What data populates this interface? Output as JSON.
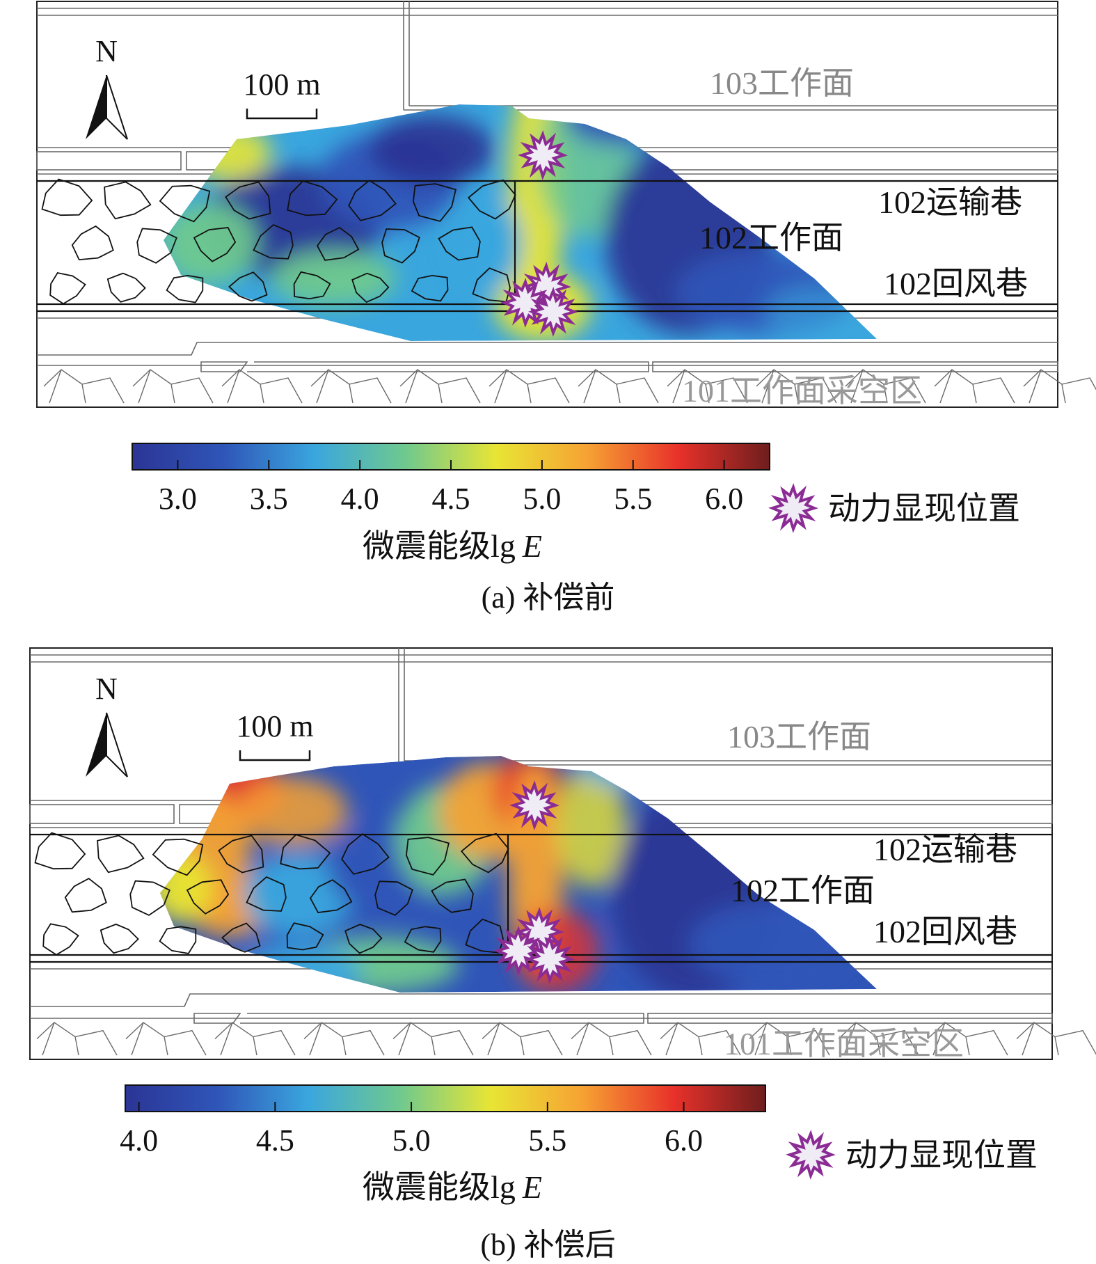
{
  "panels": [
    {
      "caption": "(a) 补偿前",
      "compass_label": "N",
      "scale_label": "100 m",
      "labels": {
        "face_103": "103工作面",
        "transport_102": "102运输巷",
        "face_102": "102工作面",
        "return_102": "102回风巷",
        "goaf_101": "101工作面采空区"
      },
      "colorbar": {
        "title_prefix": "微震能级lg",
        "title_var": "E",
        "min": 2.75,
        "max": 6.25,
        "tick_values": [
          3.0,
          3.5,
          4.0,
          4.5,
          5.0,
          5.5,
          6.0
        ],
        "tick_labels": [
          "3.0",
          "3.5",
          "4.0",
          "4.5",
          "5.0",
          "5.5",
          "6.0"
        ]
      },
      "legend_label": "动力显现位置",
      "palette": "blue-dominant"
    },
    {
      "caption": "(b) 补偿后",
      "compass_label": "N",
      "scale_label": "100 m",
      "labels": {
        "face_103": "103工作面",
        "transport_102": "102运输巷",
        "face_102": "102工作面",
        "return_102": "102回风巷",
        "goaf_101": "101工作面采空区"
      },
      "colorbar": {
        "title_prefix": "微震能级lg",
        "title_var": "E",
        "min": 3.95,
        "max": 6.3,
        "tick_values": [
          4.0,
          4.5,
          5.0,
          5.5,
          6.0
        ],
        "tick_labels": [
          "4.0",
          "4.5",
          "5.0",
          "5.5",
          "6.0"
        ]
      },
      "legend_label": "动力显现位置",
      "palette": "red-enhanced"
    }
  ],
  "colors": {
    "jet": [
      "#2b3595",
      "#2f55b8",
      "#3aa6de",
      "#6fc98e",
      "#e8e534",
      "#f6a233",
      "#e8312a",
      "#6e1e1e"
    ],
    "star_fill": "#f0ecf6",
    "star_stroke": "#8b2c94",
    "drawing_gray": "#6a6a6a"
  }
}
